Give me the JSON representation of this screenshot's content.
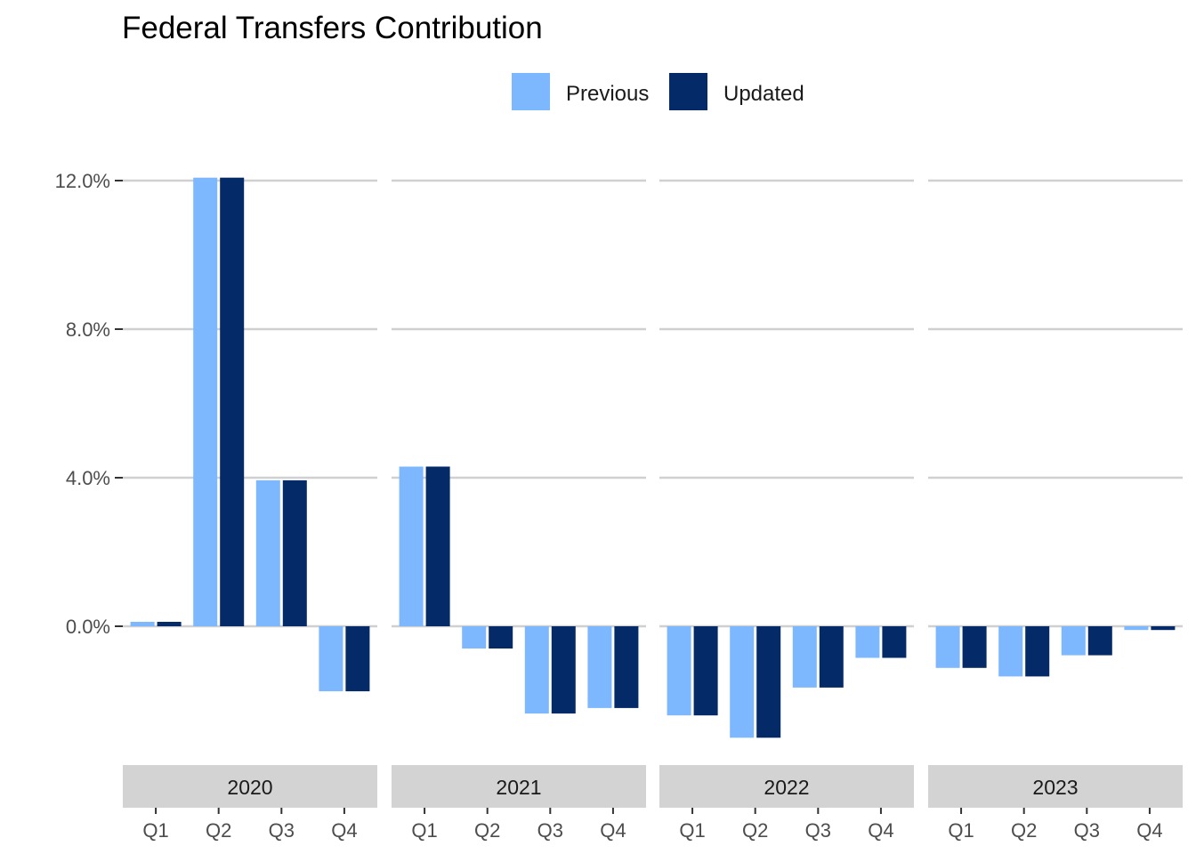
{
  "chart_data": {
    "type": "bar",
    "title": "Federal Transfers Contribution",
    "xlabel": "",
    "ylabel": "",
    "ylim": [
      -3.2,
      12.2
    ],
    "y_ticks": [
      0,
      4,
      8,
      12
    ],
    "y_tick_labels": [
      "0.0%",
      "4.0%",
      "8.0%",
      "12.0%"
    ],
    "grid": "horizontal major",
    "legend_position": "top",
    "colors": {
      "Previous": "#7db8ff",
      "Updated": "#042a67"
    },
    "facets": [
      {
        "label": "2020",
        "categories": [
          "Q1",
          "Q2",
          "Q3",
          "Q4"
        ],
        "series": [
          {
            "name": "Previous",
            "values": [
              0.12,
              12.08,
              3.93,
              -1.75
            ]
          },
          {
            "name": "Updated",
            "values": [
              0.12,
              12.08,
              3.93,
              -1.75
            ]
          }
        ]
      },
      {
        "label": "2021",
        "categories": [
          "Q1",
          "Q2",
          "Q3",
          "Q4"
        ],
        "series": [
          {
            "name": "Previous",
            "values": [
              4.3,
              -0.6,
              -2.35,
              -2.2
            ]
          },
          {
            "name": "Updated",
            "values": [
              4.3,
              -0.6,
              -2.35,
              -2.2
            ]
          }
        ]
      },
      {
        "label": "2022",
        "categories": [
          "Q1",
          "Q2",
          "Q3",
          "Q4"
        ],
        "series": [
          {
            "name": "Previous",
            "values": [
              -2.4,
              -3.0,
              -1.65,
              -0.85
            ]
          },
          {
            "name": "Updated",
            "values": [
              -2.4,
              -3.0,
              -1.65,
              -0.85
            ]
          }
        ]
      },
      {
        "label": "2023",
        "categories": [
          "Q1",
          "Q2",
          "Q3",
          "Q4"
        ],
        "series": [
          {
            "name": "Previous",
            "values": [
              -1.12,
              -1.35,
              -0.78,
              -0.1
            ]
          },
          {
            "name": "Updated",
            "values": [
              -1.12,
              -1.35,
              -0.78,
              -0.1
            ]
          }
        ]
      }
    ]
  }
}
